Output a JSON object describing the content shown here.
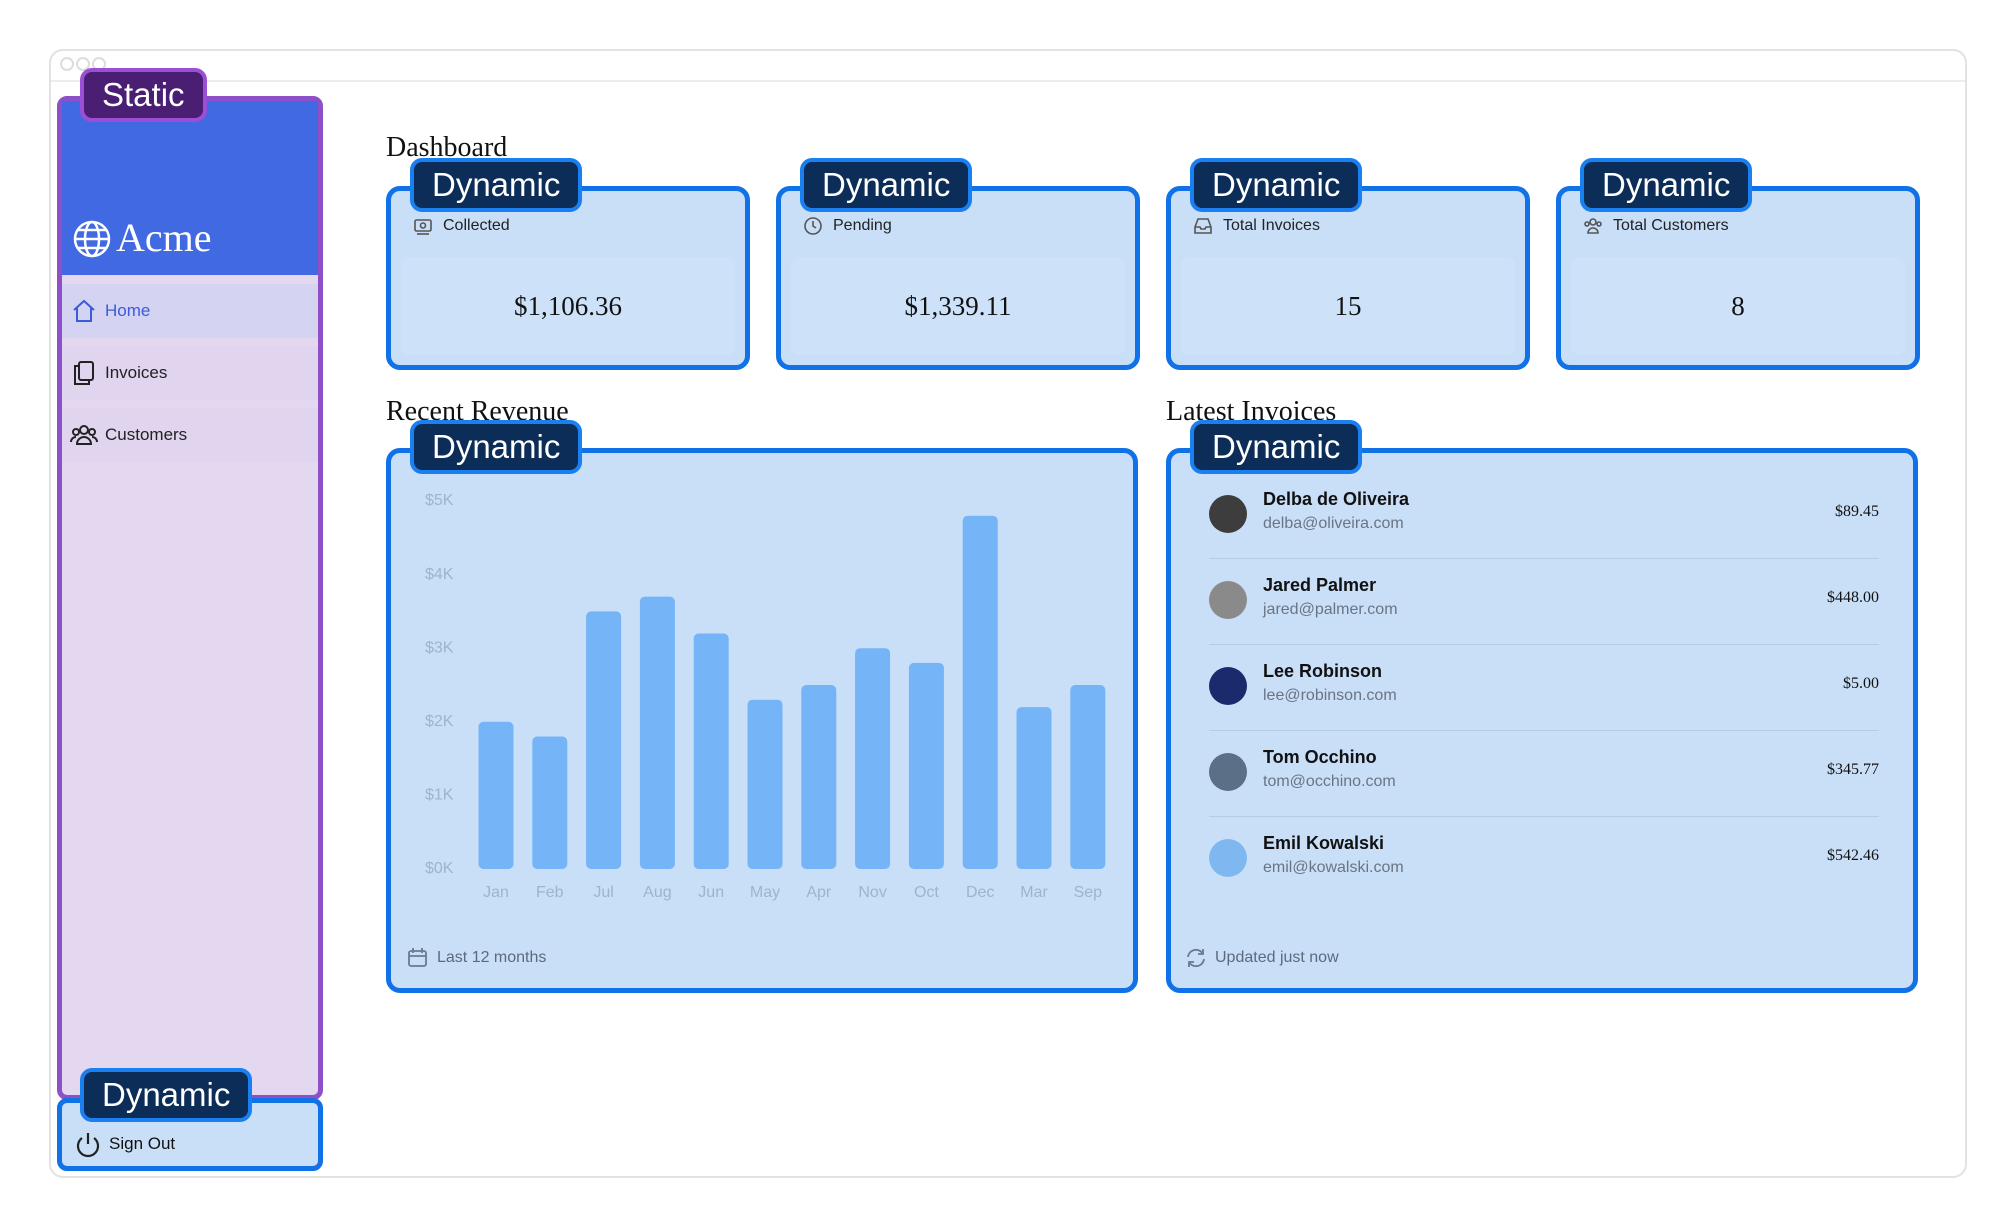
{
  "sidebar": {
    "logo": "Acme",
    "nav": [
      "Home",
      "Invoices",
      "Customers"
    ],
    "sign_out": "Sign Out"
  },
  "overlays": [
    "Static",
    "Dynamic",
    "Dynamic",
    "Dynamic",
    "Dynamic",
    "Dynamic",
    "Dynamic",
    "Dynamic"
  ],
  "dashboard": {
    "title": "Dashboard",
    "cards": [
      {
        "label": "Collected",
        "value": "$1,106.36"
      },
      {
        "label": "Pending",
        "value": "$1,339.11"
      },
      {
        "label": "Total Invoices",
        "value": "15"
      },
      {
        "label": "Total Customers",
        "value": "8"
      }
    ]
  },
  "chart_data": {
    "type": "bar",
    "title": "Recent Revenue",
    "categories": [
      "Jan",
      "Feb",
      "Jul",
      "Aug",
      "Jun",
      "May",
      "Apr",
      "Nov",
      "Oct",
      "Dec",
      "Mar",
      "Sep"
    ],
    "values": [
      2000,
      1800,
      3500,
      3700,
      3200,
      2300,
      2500,
      3000,
      2800,
      4800,
      2200,
      2500
    ],
    "color": "#74b4f7",
    "ylim": [
      0,
      5000
    ],
    "yticks": [
      {
        "value": 0,
        "label": "$0K"
      },
      {
        "value": 1000,
        "label": "$1K"
      },
      {
        "value": 2000,
        "label": "$2K"
      },
      {
        "value": 3000,
        "label": "$3K"
      },
      {
        "value": 4000,
        "label": "$4K"
      },
      {
        "value": 5000,
        "label": "$5K"
      }
    ],
    "footer": "Last 12 months"
  },
  "latest_invoices": {
    "title": "Latest Invoices",
    "footer": "Updated just now",
    "rows": [
      {
        "name": "Delba de Oliveira",
        "email": "delba@oliveira.com",
        "amount": "$89.45"
      },
      {
        "name": "Jared Palmer",
        "email": "jared@palmer.com",
        "amount": "$448.00"
      },
      {
        "name": "Lee Robinson",
        "email": "lee@robinson.com",
        "amount": "$5.00"
      },
      {
        "name": "Tom Occhino",
        "email": "tom@occhino.com",
        "amount": "$345.77"
      },
      {
        "name": "Emil Kowalski",
        "email": "emil@kowalski.com",
        "amount": "$542.46"
      }
    ]
  }
}
